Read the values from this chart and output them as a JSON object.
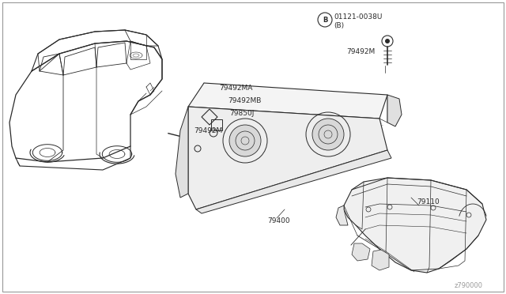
{
  "bg_color": "#ffffff",
  "fig_width": 6.4,
  "fig_height": 3.72,
  "dpi": 100,
  "border_color": "#999999",
  "line_color": "#2a2a2a",
  "labels": {
    "part_code": "01121-0038U",
    "part_b": "(B)",
    "p79492M_top": "79492M",
    "p79492MA": "79492MA",
    "p79492MB": "79492MB",
    "p79650J": "79850J",
    "p79492M_left": "79492M",
    "p79400": "79400",
    "p79110": "79110",
    "watermark": "z790000"
  },
  "font_size": 6.5,
  "font_family": "DejaVu Sans"
}
